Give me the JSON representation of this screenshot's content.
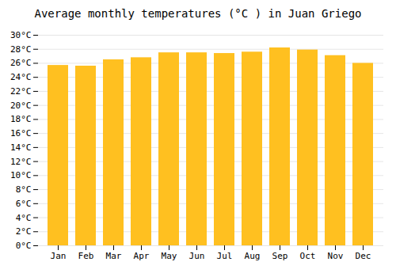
{
  "chart_data": {
    "type": "bar",
    "title": "Average monthly temperatures (°C ) in Juan Griego",
    "categories": [
      "Jan",
      "Feb",
      "Mar",
      "Apr",
      "May",
      "Jun",
      "Jul",
      "Aug",
      "Sep",
      "Oct",
      "Nov",
      "Dec"
    ],
    "values": [
      25.7,
      25.6,
      26.5,
      26.8,
      27.5,
      27.5,
      27.4,
      27.6,
      28.2,
      27.9,
      27.1,
      26.0
    ],
    "color": "#FFC020",
    "ylim": [
      0,
      30
    ],
    "yticks": [
      {
        "value": 0,
        "label": "0°C"
      },
      {
        "value": 2,
        "label": "2°C"
      },
      {
        "value": 4,
        "label": "4°C"
      },
      {
        "value": 6,
        "label": "6°C"
      },
      {
        "value": 8,
        "label": "8°C"
      },
      {
        "value": 10,
        "label": "10°C"
      },
      {
        "value": 12,
        "label": "12°C"
      },
      {
        "value": 14,
        "label": "14°C"
      },
      {
        "value": 16,
        "label": "16°C"
      },
      {
        "value": 18,
        "label": "18°C"
      },
      {
        "value": 20,
        "label": "20°C"
      },
      {
        "value": 22,
        "label": "22°C"
      },
      {
        "value": 24,
        "label": "24°C"
      },
      {
        "value": 26,
        "label": "26°C"
      },
      {
        "value": 28,
        "label": "28°C"
      },
      {
        "value": 30,
        "label": "30°C"
      }
    ],
    "grid": true
  }
}
